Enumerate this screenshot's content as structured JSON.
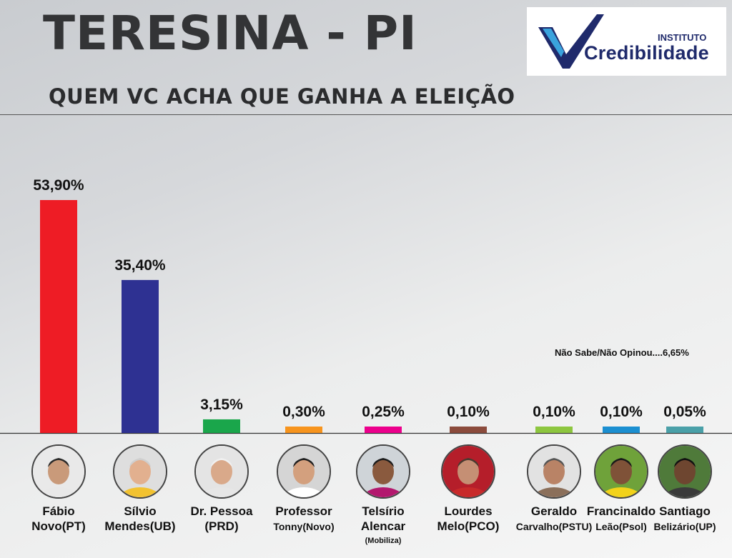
{
  "header": {
    "title": "TERESINA - PI",
    "subtitle": "QUEM VC ACHA QUE GANHA A ELEIÇÃO"
  },
  "logo": {
    "small": "INSTITUTO",
    "big": "Credibilidade",
    "color": "#1f2a6b"
  },
  "note": "Não Sabe/Não Opinou....6,65%",
  "chart_data": {
    "type": "bar",
    "title": "QUEM VC ACHA QUE GANHA A ELEIÇÃO",
    "categories": [
      "Fábio Novo(PT)",
      "Sílvio Mendes(UB)",
      "Dr. Pessoa (PRD)",
      "Professor Tonny(Novo)",
      "Telsírio Alencar (Mobiliza)",
      "Lourdes Melo(PCO)",
      "Geraldo Carvalho(PSTU)",
      "Francinaldo Leão(Psol)",
      "Santiago Belizário(UP)"
    ],
    "values": [
      53.9,
      35.4,
      3.15,
      0.3,
      0.25,
      0.1,
      0.1,
      0.1,
      0.05
    ],
    "labels": [
      "53,90%",
      "35,40%",
      "3,15%",
      "0,30%",
      "0,25%",
      "0,10%",
      "0,10%",
      "0,10%",
      "0,05%"
    ],
    "colors": [
      "#ee1c25",
      "#2e3192",
      "#1aa64b",
      "#f7941d",
      "#ec008c",
      "#8b4b3c",
      "#8dc63f",
      "#1b8fd1",
      "#4aa0a8"
    ],
    "ylim": [
      0,
      60
    ]
  },
  "candidates": [
    {
      "line1": "Fábio",
      "line2": "Novo(PT)",
      "line3": "",
      "icon": "portrait-icon"
    },
    {
      "line1": "Sílvio",
      "line2": "Mendes(UB)",
      "line3": "",
      "icon": "portrait-icon"
    },
    {
      "line1": "Dr. Pessoa",
      "line2": "(PRD)",
      "line3": "",
      "icon": "portrait-icon"
    },
    {
      "line1": "Professor",
      "line2": "Tonny(Novo)",
      "line3": "",
      "icon": "portrait-icon"
    },
    {
      "line1": "Telsírio",
      "line2": "Alencar",
      "line3": "(Mobiliza)",
      "icon": "portrait-icon"
    },
    {
      "line1": "Lourdes",
      "line2": "Melo(PCO)",
      "line3": "",
      "icon": "portrait-icon"
    },
    {
      "line1": "Geraldo",
      "line2": "Carvalho(PSTU)",
      "line3": "",
      "icon": "portrait-icon"
    },
    {
      "line1": "Francinaldo",
      "line2": "Leão(Psol)",
      "line3": "",
      "icon": "portrait-icon"
    },
    {
      "line1": "Santiago",
      "line2": "Belizário(UP)",
      "line3": "",
      "icon": "portrait-icon"
    }
  ]
}
